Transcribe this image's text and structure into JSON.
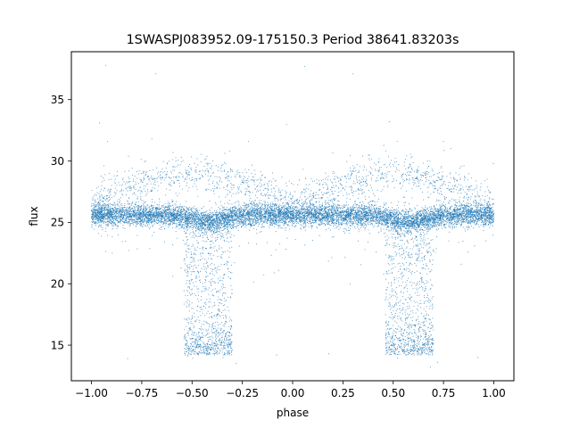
{
  "chart_data": {
    "type": "scatter",
    "title": "1SWASPJ083952.09-175150.3 Period 38641.83203s",
    "xlabel": "phase",
    "ylabel": "flux",
    "xlim": [
      -1.1,
      1.1
    ],
    "ylim": [
      12.1,
      38.9
    ],
    "grid": false,
    "legend": "none",
    "point_color": "#1f77b4",
    "x_ticks": [
      -1.0,
      -0.75,
      -0.5,
      -0.25,
      0.0,
      0.25,
      0.5,
      0.75,
      1.0
    ],
    "x_tick_labels": [
      "−1.00",
      "−0.75",
      "−0.50",
      "−0.25",
      "0.00",
      "0.25",
      "0.50",
      "0.75",
      "1.00"
    ],
    "y_ticks": [
      15,
      20,
      25,
      30,
      35
    ],
    "y_tick_labels": [
      "15",
      "20",
      "25",
      "30",
      "35"
    ],
    "light_curve": {
      "baseline_flux": 25.6,
      "baseline_scatter": 0.45,
      "eclipse_centers": [
        -0.42,
        0.58
      ],
      "eclipse_half_width": 0.12,
      "eclipse_min_flux": 14.2,
      "secondary_flux": 25.0,
      "upper_branch_flux": 29.0
    },
    "outliers": [
      {
        "x": -0.93,
        "y": 37.8
      },
      {
        "x": -0.68,
        "y": 37.1
      },
      {
        "x": 0.06,
        "y": 37.7
      },
      {
        "x": 0.3,
        "y": 37.1
      },
      {
        "x": -0.03,
        "y": 33.0
      },
      {
        "x": -0.96,
        "y": 33.1
      },
      {
        "x": 0.48,
        "y": 33.2
      },
      {
        "x": -0.92,
        "y": 31.6
      },
      {
        "x": -0.22,
        "y": 31.6
      },
      {
        "x": 0.75,
        "y": 31.6
      },
      {
        "x": -0.7,
        "y": 31.8
      },
      {
        "x": 0.52,
        "y": 31.6
      },
      {
        "x": -0.28,
        "y": 13.5
      },
      {
        "x": 0.72,
        "y": 13.6
      },
      {
        "x": -0.08,
        "y": 14.2
      },
      {
        "x": 0.92,
        "y": 14.0
      },
      {
        "x": -0.82,
        "y": 13.9
      },
      {
        "x": 0.18,
        "y": 14.3
      }
    ]
  }
}
